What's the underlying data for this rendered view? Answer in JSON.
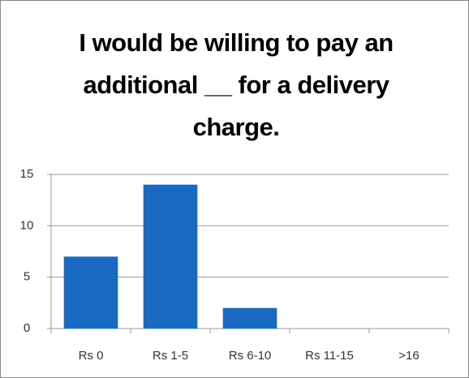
{
  "chart_data": {
    "type": "bar",
    "title": "I would be willing to pay an additional __ for a delivery charge.",
    "categories": [
      "Rs 0",
      "Rs 1-5",
      "Rs 6-10",
      "Rs 11-15",
      ">16"
    ],
    "values": [
      7,
      14,
      2,
      0,
      0
    ],
    "color": "#1a6ac4",
    "ylim": [
      0,
      15
    ],
    "yticks": [
      0,
      5,
      10,
      15
    ],
    "grid": true
  }
}
